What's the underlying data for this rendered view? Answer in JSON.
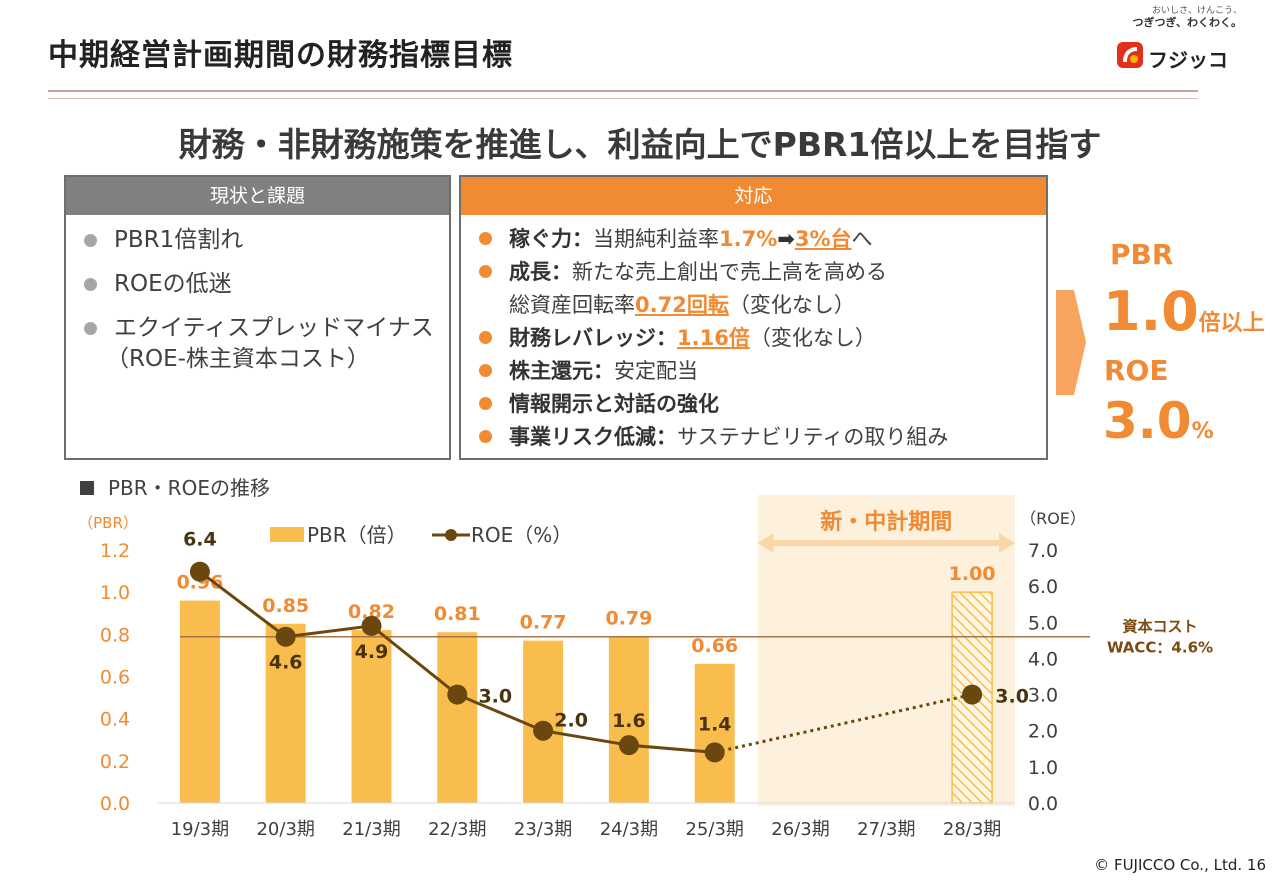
{
  "header": {
    "title": "中期経営計画期間の財務指標目標",
    "logo_tagline_1": "おいしさ、けんこう、",
    "logo_tagline_2": "つぎつぎ、わくわく。",
    "logo_name": "フジッコ"
  },
  "headline": "財務・非財務施策を推進し、利益向上でPBR1倍以上を目指す",
  "left_box": {
    "title": "現状と課題",
    "items": [
      "PBR1倍割れ",
      "ROEの低迷",
      "エクイティスプレッドマイナス",
      "（ROE-株主資本コスト）"
    ]
  },
  "right_box": {
    "title": "対応",
    "items": [
      {
        "kw": "稼ぐ力：",
        "text": "当期純利益率",
        "hl": "1.7%",
        "arrow": "➡",
        "hl2": "3%台",
        "tail": "へ"
      },
      {
        "kw": "成長：",
        "text": "新たな売上創出で売上高を高める"
      },
      {
        "text": "総資産回転率",
        "hl": "0.72回転",
        "tail": "（変化なし）"
      },
      {
        "kw": "財務レバレッジ：",
        "hl": "1.16倍",
        "tail": "（変化なし）"
      },
      {
        "kw": "株主還元：",
        "text": "安定配当"
      },
      {
        "kw": "情報開示と対話の強化"
      },
      {
        "kw": "事業リスク低減：",
        "text": "サステナビリティの取り組み"
      }
    ]
  },
  "targets": {
    "pbr_label": "PBR",
    "pbr_value": "1.0",
    "pbr_unit": "倍以上",
    "roe_label": "ROE",
    "roe_value": "3.0",
    "roe_unit": "%"
  },
  "chart_title": "PBR・ROEの推移",
  "footer": "© FUJICCO Co., Ltd.  16",
  "chart_data": {
    "type": "bar+line",
    "categories": [
      "19/3期",
      "20/3期",
      "21/3期",
      "22/3期",
      "23/3期",
      "24/3期",
      "25/3期",
      "26/3期",
      "27/3期",
      "28/3期"
    ],
    "series": [
      {
        "name": "PBR（倍）",
        "type": "bar",
        "axis": "left",
        "values": [
          0.96,
          0.85,
          0.82,
          0.81,
          0.77,
          0.79,
          0.66,
          null,
          null,
          1.0
        ],
        "value_labels": [
          "0.96",
          "0.85",
          "0.82",
          "0.81",
          "0.77",
          "0.79",
          "0.66",
          "",
          "",
          "1.00"
        ],
        "target_index": 9
      },
      {
        "name": "ROE（%）",
        "type": "line",
        "axis": "right",
        "values": [
          6.4,
          4.6,
          4.9,
          3.0,
          2.0,
          1.6,
          1.4,
          null,
          null,
          3.0
        ],
        "value_labels": [
          "6.4",
          "4.6",
          "4.9",
          "3.0",
          "2.0",
          "1.6",
          "1.4",
          "",
          "",
          "3.0"
        ],
        "dotted_from_index": 6
      }
    ],
    "left_axis": {
      "label": "（PBR）",
      "min": 0,
      "max": 1.2,
      "ticks": [
        "0.0",
        "0.2",
        "0.4",
        "0.6",
        "0.8",
        "1.0",
        "1.2"
      ]
    },
    "right_axis": {
      "label": "（ROE）",
      "min": 0,
      "max": 7.0,
      "ticks": [
        "0.0",
        "1.0",
        "2.0",
        "3.0",
        "4.0",
        "5.0",
        "6.0",
        "7.0"
      ]
    },
    "reference_line": {
      "value": 4.6,
      "axis": "right",
      "label1": "資本コスト",
      "label2": "WACC：4.6%"
    },
    "period_band": {
      "label": "新・中計期間",
      "from_index": 7,
      "to_index": 9
    },
    "colors": {
      "bar": "#f9bd4e",
      "line": "#6b4710",
      "axis_left": "#f08a33",
      "ref_line": "#a8744a",
      "band": "#fdf0dc"
    }
  }
}
